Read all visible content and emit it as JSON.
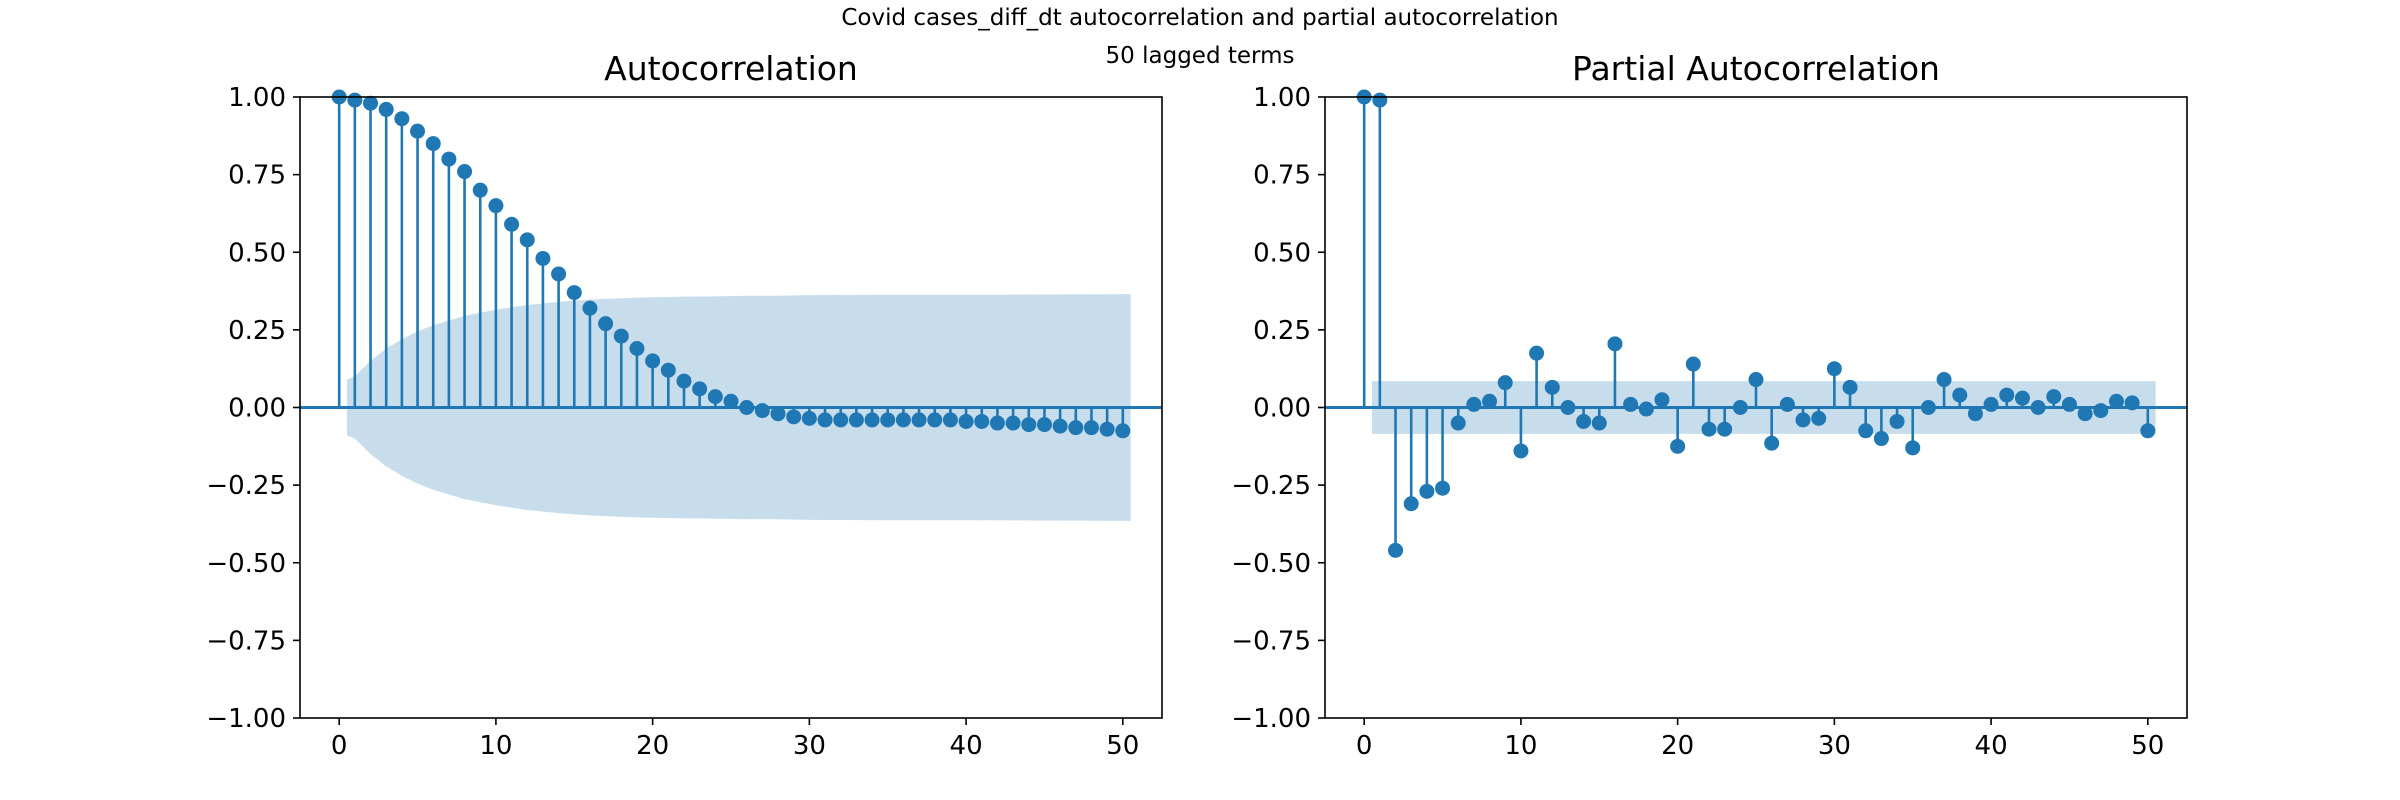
{
  "figure": {
    "title_line1": "Covid cases_diff_dt autocorrelation and partial autocorrelation",
    "title_line2": "50 lagged terms"
  },
  "colors": {
    "stem": "#1f77b4",
    "band": "#1f77b4"
  },
  "chart_data": [
    {
      "type": "stem",
      "title": "Autocorrelation",
      "xlabel": "",
      "ylabel": "",
      "xlim": [
        -2.5,
        52.5
      ],
      "ylim": [
        -1.0,
        1.0
      ],
      "x_ticks": [
        0,
        10,
        20,
        30,
        40,
        50
      ],
      "x_tick_labels": [
        "0",
        "10",
        "20",
        "30",
        "40",
        "50"
      ],
      "y_ticks": [
        1.0,
        0.75,
        0.5,
        0.25,
        0.0,
        -0.25,
        -0.5,
        -0.75,
        -1.0
      ],
      "y_tick_labels": [
        "1.00",
        "0.75",
        "0.50",
        "0.25",
        "0.00",
        "−0.25",
        "−0.50",
        "−0.75",
        "−1.00"
      ],
      "grid": false,
      "lags": [
        0,
        1,
        2,
        3,
        4,
        5,
        6,
        7,
        8,
        9,
        10,
        11,
        12,
        13,
        14,
        15,
        16,
        17,
        18,
        19,
        20,
        21,
        22,
        23,
        24,
        25,
        26,
        27,
        28,
        29,
        30,
        31,
        32,
        33,
        34,
        35,
        36,
        37,
        38,
        39,
        40,
        41,
        42,
        43,
        44,
        45,
        46,
        47,
        48,
        49,
        50
      ],
      "values": [
        1.0,
        0.99,
        0.98,
        0.96,
        0.93,
        0.89,
        0.85,
        0.8,
        0.76,
        0.7,
        0.65,
        0.59,
        0.54,
        0.48,
        0.43,
        0.37,
        0.32,
        0.27,
        0.23,
        0.19,
        0.15,
        0.12,
        0.085,
        0.06,
        0.035,
        0.02,
        0.0,
        -0.01,
        -0.02,
        -0.03,
        -0.035,
        -0.04,
        -0.04,
        -0.04,
        -0.04,
        -0.04,
        -0.04,
        -0.04,
        -0.04,
        -0.04,
        -0.045,
        -0.045,
        -0.05,
        -0.05,
        -0.055,
        -0.055,
        -0.06,
        -0.065,
        -0.065,
        -0.07,
        -0.075
      ],
      "confidence_band": {
        "lags": [
          0.5,
          1,
          2,
          3,
          4,
          5,
          6,
          7,
          8,
          9,
          10,
          12,
          14,
          16,
          18,
          20,
          22,
          24,
          26,
          28,
          30,
          35,
          40,
          45,
          50.5
        ],
        "upper": [
          0.09,
          0.1,
          0.15,
          0.19,
          0.22,
          0.245,
          0.265,
          0.28,
          0.295,
          0.305,
          0.315,
          0.33,
          0.34,
          0.348,
          0.352,
          0.355,
          0.357,
          0.358,
          0.36,
          0.36,
          0.362,
          0.363,
          0.363,
          0.364,
          0.365
        ]
      }
    },
    {
      "type": "stem",
      "title": "Partial Autocorrelation",
      "xlabel": "",
      "ylabel": "",
      "xlim": [
        -2.5,
        52.5
      ],
      "ylim": [
        -1.0,
        1.0
      ],
      "x_ticks": [
        0,
        10,
        20,
        30,
        40,
        50
      ],
      "x_tick_labels": [
        "0",
        "10",
        "20",
        "30",
        "40",
        "50"
      ],
      "y_ticks": [
        1.0,
        0.75,
        0.5,
        0.25,
        0.0,
        -0.25,
        -0.5,
        -0.75,
        -1.0
      ],
      "y_tick_labels": [
        "1.00",
        "0.75",
        "0.50",
        "0.25",
        "0.00",
        "−0.25",
        "−0.50",
        "−0.75",
        "−1.00"
      ],
      "grid": false,
      "lags": [
        0,
        1,
        2,
        3,
        4,
        5,
        6,
        7,
        8,
        9,
        10,
        11,
        12,
        13,
        14,
        15,
        16,
        17,
        18,
        19,
        20,
        21,
        22,
        23,
        24,
        25,
        26,
        27,
        28,
        29,
        30,
        31,
        32,
        33,
        34,
        35,
        36,
        37,
        38,
        39,
        40,
        41,
        42,
        43,
        44,
        45,
        46,
        47,
        48,
        49,
        50
      ],
      "values": [
        1.0,
        0.99,
        -0.46,
        -0.31,
        -0.27,
        -0.26,
        -0.05,
        0.01,
        0.02,
        0.08,
        -0.14,
        0.175,
        0.065,
        0.0,
        -0.045,
        -0.05,
        0.205,
        0.01,
        -0.005,
        0.025,
        -0.125,
        0.14,
        -0.07,
        -0.07,
        0.0,
        0.09,
        -0.115,
        0.01,
        -0.04,
        -0.035,
        0.125,
        0.065,
        -0.075,
        -0.1,
        -0.045,
        -0.13,
        0.0,
        0.09,
        0.04,
        -0.02,
        0.01,
        0.04,
        0.03,
        0.0,
        0.035,
        0.01,
        -0.02,
        -0.01,
        0.02,
        0.015,
        -0.075
      ],
      "confidence_band": {
        "lags": [
          0.5,
          50.5
        ],
        "upper": [
          0.085,
          0.085
        ]
      }
    }
  ]
}
